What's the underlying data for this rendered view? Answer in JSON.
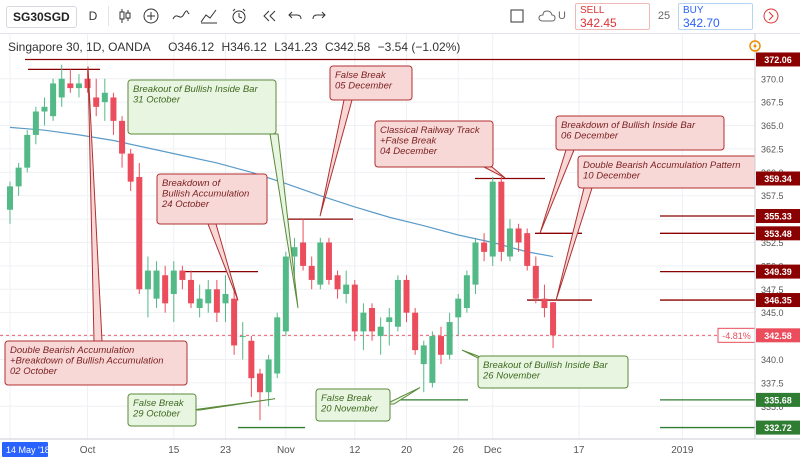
{
  "toolbar": {
    "symbol": "SG30SGD",
    "interval": "D",
    "sell_label": "SELL",
    "sell_price": "342.45",
    "spread": "25",
    "buy_label": "BUY",
    "buy_price": "342.70",
    "extra_label": "U"
  },
  "legend": {
    "title": "Singapore 30, 1D, OANDA",
    "open": "O346.12",
    "high": "H346.12",
    "low": "L341.23",
    "close": "C342.58",
    "change": "−3.54 (−1.02%)"
  },
  "chart_data": {
    "type": "candlestick",
    "ylim": [
      331.5,
      373.5
    ],
    "yticks": [
      335.0,
      337.5,
      340.0,
      342.5,
      345.0,
      347.5,
      350.0,
      352.5,
      355.0,
      357.5,
      360.0,
      362.5,
      365.0,
      367.5,
      370.0
    ],
    "xticks": [
      {
        "label": "14 May '18",
        "idx": 0
      },
      {
        "label": "Oct",
        "idx": 9
      },
      {
        "label": "15",
        "idx": 19
      },
      {
        "label": "23",
        "idx": 25
      },
      {
        "label": "Nov",
        "idx": 32
      },
      {
        "label": "12",
        "idx": 40
      },
      {
        "label": "20",
        "idx": 46
      },
      {
        "label": "26",
        "idx": 52
      },
      {
        "label": "Dec",
        "idx": 56
      },
      {
        "label": "17",
        "idx": 66
      },
      {
        "label": "2019",
        "idx": 78
      }
    ],
    "candles": [
      {
        "o": 356.0,
        "h": 359.0,
        "l": 354.5,
        "c": 358.5
      },
      {
        "o": 358.5,
        "h": 361.0,
        "l": 357.5,
        "c": 360.5
      },
      {
        "o": 360.5,
        "h": 364.5,
        "l": 360.0,
        "c": 364.0
      },
      {
        "o": 364.0,
        "h": 367.0,
        "l": 363.0,
        "c": 366.5
      },
      {
        "o": 366.5,
        "h": 368.0,
        "l": 365.0,
        "c": 367.0
      },
      {
        "o": 366.0,
        "h": 370.0,
        "l": 365.5,
        "c": 369.5
      },
      {
        "o": 368.0,
        "h": 371.5,
        "l": 367.0,
        "c": 370.0
      },
      {
        "o": 369.5,
        "h": 371.0,
        "l": 368.5,
        "c": 369.0
      },
      {
        "o": 369.0,
        "h": 370.5,
        "l": 368.0,
        "c": 369.5
      },
      {
        "o": 370.0,
        "h": 371.0,
        "l": 368.5,
        "c": 369.0
      },
      {
        "o": 368.0,
        "h": 370.0,
        "l": 366.0,
        "c": 367.0
      },
      {
        "o": 367.5,
        "h": 370.0,
        "l": 365.5,
        "c": 368.5
      },
      {
        "o": 368.0,
        "h": 368.5,
        "l": 364.0,
        "c": 365.5
      },
      {
        "o": 365.5,
        "h": 366.0,
        "l": 360.5,
        "c": 362.0
      },
      {
        "o": 362.0,
        "h": 362.5,
        "l": 358.0,
        "c": 359.0
      },
      {
        "o": 359.5,
        "h": 361.0,
        "l": 347.0,
        "c": 347.5
      },
      {
        "o": 347.5,
        "h": 351.0,
        "l": 344.5,
        "c": 349.5
      },
      {
        "o": 346.5,
        "h": 350.5,
        "l": 345.5,
        "c": 349.5
      },
      {
        "o": 349.0,
        "h": 350.0,
        "l": 345.0,
        "c": 346.0
      },
      {
        "o": 347.0,
        "h": 350.5,
        "l": 344.0,
        "c": 349.5
      },
      {
        "o": 349.5,
        "h": 350.0,
        "l": 347.5,
        "c": 348.5
      },
      {
        "o": 348.5,
        "h": 349.5,
        "l": 345.5,
        "c": 346.0
      },
      {
        "o": 345.5,
        "h": 348.0,
        "l": 344.5,
        "c": 346.5
      },
      {
        "o": 346.0,
        "h": 348.5,
        "l": 345.0,
        "c": 347.5
      },
      {
        "o": 347.5,
        "h": 348.5,
        "l": 344.0,
        "c": 345.0
      },
      {
        "o": 346.0,
        "h": 349.0,
        "l": 344.0,
        "c": 347.0
      },
      {
        "o": 346.5,
        "h": 347.5,
        "l": 340.5,
        "c": 341.5
      },
      {
        "o": 342.5,
        "h": 344.0,
        "l": 340.0,
        "c": 342.5
      },
      {
        "o": 342.0,
        "h": 342.5,
        "l": 336.0,
        "c": 338.0
      },
      {
        "o": 338.5,
        "h": 339.0,
        "l": 333.5,
        "c": 336.5
      },
      {
        "o": 336.5,
        "h": 340.5,
        "l": 335.0,
        "c": 340.0
      },
      {
        "o": 338.5,
        "h": 345.0,
        "l": 338.0,
        "c": 344.5
      },
      {
        "o": 343.0,
        "h": 351.5,
        "l": 342.5,
        "c": 351.0
      },
      {
        "o": 351.0,
        "h": 353.0,
        "l": 349.0,
        "c": 352.0
      },
      {
        "o": 352.5,
        "h": 355.0,
        "l": 349.5,
        "c": 350.0
      },
      {
        "o": 350.0,
        "h": 351.0,
        "l": 347.5,
        "c": 348.5
      },
      {
        "o": 348.0,
        "h": 353.0,
        "l": 347.5,
        "c": 352.5
      },
      {
        "o": 352.5,
        "h": 353.0,
        "l": 348.0,
        "c": 348.5
      },
      {
        "o": 349.0,
        "h": 349.5,
        "l": 346.5,
        "c": 347.5
      },
      {
        "o": 347.0,
        "h": 349.5,
        "l": 346.0,
        "c": 348.0
      },
      {
        "o": 348.0,
        "h": 348.5,
        "l": 342.0,
        "c": 343.0
      },
      {
        "o": 343.0,
        "h": 346.0,
        "l": 341.0,
        "c": 345.0
      },
      {
        "o": 345.5,
        "h": 346.0,
        "l": 342.0,
        "c": 343.0
      },
      {
        "o": 342.5,
        "h": 344.5,
        "l": 340.5,
        "c": 343.5
      },
      {
        "o": 344.0,
        "h": 345.5,
        "l": 341.5,
        "c": 344.5
      },
      {
        "o": 343.5,
        "h": 349.0,
        "l": 343.0,
        "c": 348.5
      },
      {
        "o": 348.5,
        "h": 349.0,
        "l": 344.0,
        "c": 345.0
      },
      {
        "o": 345.0,
        "h": 345.5,
        "l": 340.5,
        "c": 341.0
      },
      {
        "o": 339.5,
        "h": 342.0,
        "l": 336.5,
        "c": 341.5
      },
      {
        "o": 337.5,
        "h": 343.0,
        "l": 337.0,
        "c": 342.5
      },
      {
        "o": 342.5,
        "h": 343.5,
        "l": 339.5,
        "c": 340.5
      },
      {
        "o": 340.5,
        "h": 345.0,
        "l": 340.0,
        "c": 344.0
      },
      {
        "o": 344.5,
        "h": 347.0,
        "l": 342.5,
        "c": 346.5
      },
      {
        "o": 345.5,
        "h": 349.5,
        "l": 345.0,
        "c": 349.0
      },
      {
        "o": 348.0,
        "h": 353.0,
        "l": 347.0,
        "c": 352.5
      },
      {
        "o": 352.5,
        "h": 353.5,
        "l": 350.5,
        "c": 351.5
      },
      {
        "o": 351.0,
        "h": 359.5,
        "l": 350.0,
        "c": 359.0
      },
      {
        "o": 359.0,
        "h": 359.5,
        "l": 350.5,
        "c": 351.5
      },
      {
        "o": 351.0,
        "h": 355.0,
        "l": 350.5,
        "c": 354.0
      },
      {
        "o": 354.0,
        "h": 354.5,
        "l": 351.5,
        "c": 352.5
      },
      {
        "o": 353.5,
        "h": 354.0,
        "l": 349.5,
        "c": 350.0
      },
      {
        "o": 350.0,
        "h": 351.0,
        "l": 346.0,
        "c": 346.5
      },
      {
        "o": 346.5,
        "h": 348.0,
        "l": 344.5,
        "c": 345.5
      },
      {
        "o": 346.12,
        "h": 346.12,
        "l": 341.23,
        "c": 342.58
      }
    ],
    "ma": [
      {
        "i": 0,
        "v": 364.8
      },
      {
        "i": 4,
        "v": 364.5
      },
      {
        "i": 8,
        "v": 364.0
      },
      {
        "i": 12,
        "v": 363.4
      },
      {
        "i": 16,
        "v": 362.6
      },
      {
        "i": 20,
        "v": 361.8
      },
      {
        "i": 24,
        "v": 361.0
      },
      {
        "i": 28,
        "v": 360.0
      },
      {
        "i": 32,
        "v": 358.8
      },
      {
        "i": 36,
        "v": 357.5
      },
      {
        "i": 40,
        "v": 356.3
      },
      {
        "i": 44,
        "v": 355.2
      },
      {
        "i": 48,
        "v": 354.3
      },
      {
        "i": 52,
        "v": 353.3
      },
      {
        "i": 56,
        "v": 352.5
      },
      {
        "i": 60,
        "v": 351.5
      },
      {
        "i": 63,
        "v": 351.0
      }
    ],
    "price_labels": [
      {
        "text": "372.06",
        "v": 372.06
      },
      {
        "text": "359.34",
        "v": 359.34
      },
      {
        "text": "355.33",
        "v": 355.33
      },
      {
        "text": "353.48",
        "v": 353.48
      },
      {
        "text": "349.39",
        "v": 349.39
      },
      {
        "text": "346.35",
        "v": 346.35
      },
      {
        "text": "342.58",
        "v": 342.58
      },
      {
        "text": "335.68",
        "v": 335.68
      },
      {
        "text": "332.72",
        "v": 332.72
      }
    ],
    "current_pct": "-4.81%",
    "annotations": [
      "Breakout of Bullish Inside Bar\n31 October",
      "False Break\n05 December",
      "Classical Railway Track\n+False Break\n04 December",
      "Breakdown of Bullish Inside Bar\n06 December",
      "Double Bearish Accumulation Pattern\n10 December",
      "Breakdown of\nBullish Accumulation\n24 October",
      "Double Bearish Accumulation\n+Breakdown of Bullish Accumulation\n02 October",
      "False Break\n29 October",
      "False Break\n20 November",
      "Breakout of Bullish Inside Bar\n26 November"
    ],
    "colors": {
      "up": "#53b987",
      "down": "#eb4d5c",
      "ma": "#5b9bc8",
      "level": "#8b0000",
      "support": "#2e7d32",
      "ann_red_bg": "#f8d7d7",
      "ann_green_bg": "#e8f5e0"
    }
  }
}
